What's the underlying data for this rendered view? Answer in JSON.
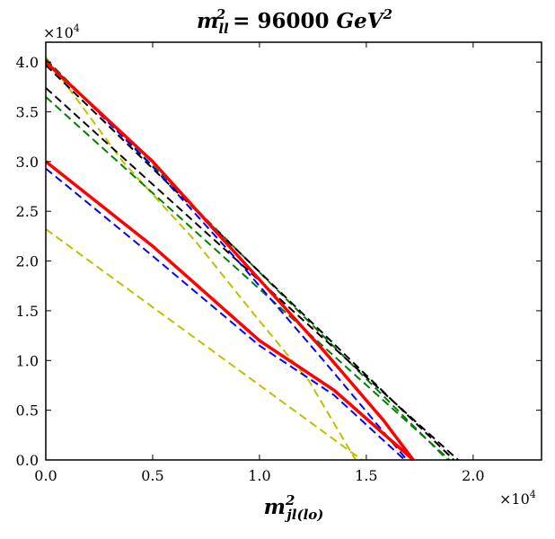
{
  "chart_data": {
    "type": "line",
    "title_base": "m",
    "title_sup": "2",
    "title_sub": "ll",
    "title_rest": " = 96000 ",
    "title_unit": "GeV",
    "title_unit_sup": "2",
    "xlabel_base": "m",
    "xlabel_sup": "2",
    "xlabel_sub": "jl(lo)",
    "xlim": [
      0,
      23200
    ],
    "ylim": [
      0,
      42000
    ],
    "x_ticks": [
      0,
      5000,
      10000,
      15000,
      20000
    ],
    "x_tick_labels": [
      "0.0",
      "0.5",
      "1.0",
      "1.5",
      "2.0"
    ],
    "y_ticks": [
      0,
      5000,
      10000,
      15000,
      20000,
      25000,
      30000,
      35000,
      40000
    ],
    "y_tick_labels": [
      "0.0",
      "0.5",
      "1.0",
      "1.5",
      "2.0",
      "2.5",
      "3.0",
      "3.5",
      "4.0"
    ],
    "x_multiplier": {
      "base": "×10",
      "exp": "4"
    },
    "y_multiplier": {
      "base": "×10",
      "exp": "4"
    },
    "series": [
      {
        "name": "yellow-outer",
        "color": "#bfbf00",
        "style": "dashed",
        "width": 2,
        "x": [
          0,
          3600,
          7000,
          9800,
          12300,
          14500
        ],
        "y": [
          40500,
          30000,
          22000,
          14500,
          8000,
          0
        ]
      },
      {
        "name": "yellow-inner",
        "color": "#bfbf00",
        "style": "dashed",
        "width": 2,
        "x": [
          0,
          14800
        ],
        "y": [
          23200,
          0
        ]
      },
      {
        "name": "green-1",
        "color": "#008000",
        "style": "dashed",
        "width": 2,
        "x": [
          0,
          18800
        ],
        "y": [
          40300,
          0
        ]
      },
      {
        "name": "green-2",
        "color": "#008000",
        "style": "dashed",
        "width": 2,
        "x": [
          0,
          18900
        ],
        "y": [
          36500,
          0
        ]
      },
      {
        "name": "black-1",
        "color": "#000000",
        "style": "dashed",
        "width": 2,
        "x": [
          0,
          19300
        ],
        "y": [
          37400,
          0
        ]
      },
      {
        "name": "black-2",
        "color": "#000000",
        "style": "dashed",
        "width": 2,
        "x": [
          0,
          19100
        ],
        "y": [
          39700,
          0
        ]
      },
      {
        "name": "blue-outer",
        "color": "#0000ff",
        "style": "dashed",
        "width": 2,
        "x": [
          0,
          5000,
          9000,
          13000,
          16900
        ],
        "y": [
          40200,
          29500,
          20000,
          10000,
          0
        ]
      },
      {
        "name": "blue-inner",
        "color": "#0000ff",
        "style": "dashed",
        "width": 2,
        "x": [
          0,
          5000,
          10000,
          13500,
          16800
        ],
        "y": [
          29300,
          20500,
          11500,
          6500,
          0
        ]
      },
      {
        "name": "red-outer",
        "color": "#ff0000",
        "style": "solid",
        "width": 3.5,
        "x": [
          0,
          5000,
          9000,
          13000,
          15800,
          17200
        ],
        "y": [
          40000,
          30000,
          20500,
          11000,
          4000,
          0
        ]
      },
      {
        "name": "red-inner",
        "color": "#ff0000",
        "style": "solid",
        "width": 3.5,
        "x": [
          0,
          5000,
          10000,
          13500,
          17200
        ],
        "y": [
          30000,
          21500,
          12000,
          7000,
          0
        ]
      }
    ]
  }
}
